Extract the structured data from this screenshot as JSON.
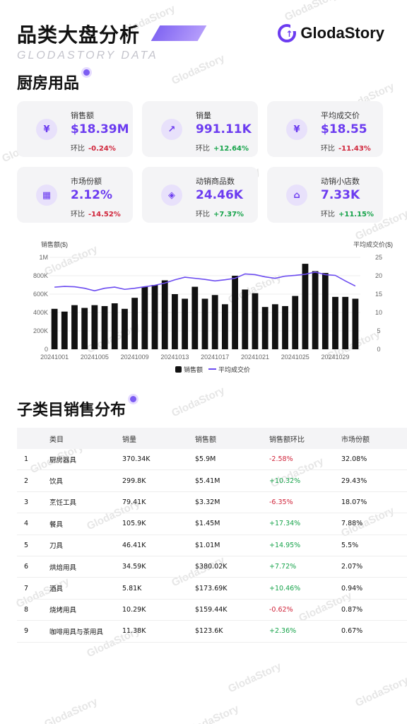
{
  "header": {
    "title": "品类大盘分析",
    "subtitle": "GLODASTORY DATA",
    "logo_text": "GlodaStory"
  },
  "watermark": "GlodaStory",
  "section1": {
    "title": "厨房用品"
  },
  "kpis": [
    {
      "icon": "money-bag-icon",
      "glyph": "¥",
      "label": "销售额",
      "value": "$18.39M",
      "change_label": "环比",
      "change": "-0.24%",
      "trend": "neg"
    },
    {
      "icon": "trend-chart-icon",
      "glyph": "↗",
      "label": "销量",
      "value": "991.11K",
      "change_label": "环比",
      "change": "+12.64%",
      "trend": "pos"
    },
    {
      "icon": "price-coin-icon",
      "glyph": "¥",
      "label": "平均成交价",
      "value": "$18.55",
      "change_label": "环比",
      "change": "-11.43%",
      "trend": "neg"
    },
    {
      "icon": "grid-icon",
      "glyph": "▦",
      "label": "市场份额",
      "value": "2.12%",
      "change_label": "环比",
      "change": "-14.52%",
      "trend": "neg"
    },
    {
      "icon": "shopping-bag-icon",
      "glyph": "◈",
      "label": "动销商品数",
      "value": "24.46K",
      "change_label": "环比",
      "change": "+7.37%",
      "trend": "pos"
    },
    {
      "icon": "store-icon",
      "glyph": "⌂",
      "label": "动销小店数",
      "value": "7.33K",
      "change_label": "环比",
      "change": "+11.15%",
      "trend": "pos"
    }
  ],
  "chart_data": {
    "type": "bar",
    "left_axis_label": "销售额($)",
    "right_axis_label": "平均成交价($)",
    "left_ticks": [
      "0",
      "200K",
      "400K",
      "600K",
      "800K",
      "1M"
    ],
    "right_ticks": [
      "0",
      "5",
      "10",
      "15",
      "20",
      "25"
    ],
    "ylim_left": [
      0,
      1000000
    ],
    "ylim_right": [
      0,
      25
    ],
    "x_tick_labels": [
      "20241001",
      "20241005",
      "20241009",
      "20241013",
      "20241017",
      "20241021",
      "20241025",
      "20241029"
    ],
    "legend": [
      "销售额",
      "平均成交价"
    ],
    "legend_placement": "bottom",
    "series": [
      {
        "name": "销售额",
        "kind": "bar",
        "color": "#111111",
        "values": [
          440000,
          410000,
          480000,
          450000,
          480000,
          470000,
          500000,
          440000,
          560000,
          680000,
          700000,
          750000,
          600000,
          550000,
          680000,
          550000,
          590000,
          490000,
          800000,
          650000,
          610000,
          460000,
          490000,
          470000,
          580000,
          930000,
          850000,
          830000,
          570000,
          570000,
          550000
        ]
      },
      {
        "name": "平均成交价",
        "kind": "line",
        "color": "#6c4cf0",
        "values": [
          16.9,
          17.1,
          17.0,
          16.6,
          15.9,
          16.6,
          16.9,
          16.3,
          16.6,
          17.0,
          17.4,
          18.0,
          18.9,
          19.6,
          19.3,
          19.0,
          18.6,
          18.9,
          19.3,
          20.5,
          20.3,
          19.7,
          19.3,
          19.9,
          20.1,
          20.4,
          21.0,
          20.3,
          20.1,
          18.6,
          17.2
        ]
      }
    ]
  },
  "section2": {
    "title": "子类目销售分布"
  },
  "table": {
    "headers": [
      "",
      "类目",
      "销量",
      "销售额",
      "销售额环比",
      "市场份额"
    ],
    "rows": [
      {
        "rank": "1",
        "name": "厨房器具",
        "volume": "370.34K",
        "sales": "$5.9M",
        "change": "-2.58%",
        "trend": "neg",
        "share": "32.08%"
      },
      {
        "rank": "2",
        "name": "饮具",
        "volume": "299.8K",
        "sales": "$5.41M",
        "change": "+10.32%",
        "trend": "pos",
        "share": "29.43%"
      },
      {
        "rank": "3",
        "name": "烹饪工具",
        "volume": "79.41K",
        "sales": "$3.32M",
        "change": "-6.35%",
        "trend": "neg",
        "share": "18.07%"
      },
      {
        "rank": "4",
        "name": "餐具",
        "volume": "105.9K",
        "sales": "$1.45M",
        "change": "+17.34%",
        "trend": "pos",
        "share": "7.88%"
      },
      {
        "rank": "5",
        "name": "刀具",
        "volume": "46.41K",
        "sales": "$1.01M",
        "change": "+14.95%",
        "trend": "pos",
        "share": "5.5%"
      },
      {
        "rank": "6",
        "name": "烘焙用具",
        "volume": "34.59K",
        "sales": "$380.02K",
        "change": "+7.72%",
        "trend": "pos",
        "share": "2.07%"
      },
      {
        "rank": "7",
        "name": "酒具",
        "volume": "5.81K",
        "sales": "$173.69K",
        "change": "+10.46%",
        "trend": "pos",
        "share": "0.94%"
      },
      {
        "rank": "8",
        "name": "烧烤用具",
        "volume": "10.29K",
        "sales": "$159.44K",
        "change": "-0.62%",
        "trend": "neg",
        "share": "0.87%"
      },
      {
        "rank": "9",
        "name": "咖啡用具与茶用具",
        "volume": "11.38K",
        "sales": "$123.6K",
        "change": "+2.36%",
        "trend": "pos",
        "share": "0.67%"
      }
    ]
  }
}
